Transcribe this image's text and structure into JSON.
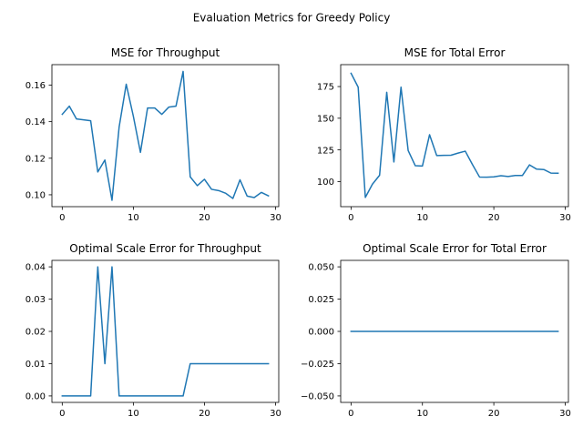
{
  "figure": {
    "title": "Evaluation Metrics for Greedy Policy"
  },
  "chart_data": [
    {
      "type": "line",
      "title": "MSE for Throughput",
      "xlabel": "",
      "ylabel": "",
      "xlim": [
        -1.45,
        30.45
      ],
      "ylim": [
        0.0935,
        0.1712
      ],
      "xticks": [
        0,
        10,
        20,
        30
      ],
      "yticks": [
        0.1,
        0.12,
        0.14,
        0.16
      ],
      "ytick_labels": [
        "0.10",
        "0.12",
        "0.14",
        "0.16"
      ],
      "grid": false,
      "series": [
        {
          "x": [
            0,
            1,
            2,
            3,
            4,
            5,
            6,
            7,
            8,
            9,
            10,
            11,
            12,
            13,
            14,
            15,
            16,
            17,
            18,
            19,
            20,
            21,
            22,
            23,
            24,
            25,
            26,
            27,
            28,
            29
          ],
          "y": [
            0.144,
            0.1485,
            0.1415,
            0.141,
            0.1405,
            0.1125,
            0.119,
            0.097,
            0.137,
            0.1605,
            0.143,
            0.1232,
            0.1475,
            0.1475,
            0.144,
            0.148,
            0.1485,
            0.1675,
            0.1098,
            0.105,
            0.1085,
            0.103,
            0.1023,
            0.1008,
            0.098,
            0.1082,
            0.0993,
            0.0985,
            0.1013,
            0.0994
          ]
        }
      ]
    },
    {
      "type": "line",
      "title": "MSE for Total Error",
      "xlabel": "",
      "ylabel": "",
      "xlim": [
        -1.45,
        30.45
      ],
      "ylim": [
        80.2,
        192.3
      ],
      "xticks": [
        0,
        10,
        20,
        30
      ],
      "yticks": [
        100,
        125,
        150,
        175
      ],
      "ytick_labels": [
        "100",
        "125",
        "150",
        "175"
      ],
      "grid": false,
      "series": [
        {
          "x": [
            0,
            1,
            2,
            3,
            4,
            5,
            6,
            7,
            8,
            9,
            10,
            11,
            12,
            13,
            14,
            15,
            16,
            17,
            18,
            19,
            20,
            21,
            22,
            23,
            24,
            25,
            26,
            27,
            28,
            29
          ],
          "y": [
            185.5,
            174.5,
            87.5,
            98,
            105,
            170.5,
            115.5,
            174.5,
            124.5,
            112.5,
            112.3,
            137,
            120.5,
            120.7,
            120.8,
            122.5,
            124,
            113.5,
            103.6,
            103.5,
            103.7,
            104.6,
            104,
            104.8,
            104.8,
            113.2,
            109.8,
            109.5,
            106.7,
            106.6
          ]
        }
      ]
    },
    {
      "type": "line",
      "title": "Optimal Scale Error for Throughput",
      "xlabel": "",
      "ylabel": "",
      "xlim": [
        -1.45,
        30.45
      ],
      "ylim": [
        -0.002,
        0.042
      ],
      "xticks": [
        0,
        10,
        20,
        30
      ],
      "yticks": [
        0.0,
        0.01,
        0.02,
        0.03,
        0.04
      ],
      "ytick_labels": [
        "0.00",
        "0.01",
        "0.02",
        "0.03",
        "0.04"
      ],
      "grid": false,
      "series": [
        {
          "x": [
            0,
            1,
            2,
            3,
            4,
            5,
            6,
            7,
            8,
            9,
            10,
            11,
            12,
            13,
            14,
            15,
            16,
            17,
            18,
            19,
            20,
            21,
            22,
            23,
            24,
            25,
            26,
            27,
            28,
            29
          ],
          "y": [
            0,
            0,
            0,
            0,
            0,
            0.04,
            0.01,
            0.04,
            0,
            0,
            0,
            0,
            0,
            0,
            0,
            0,
            0,
            0,
            0.01,
            0.01,
            0.01,
            0.01,
            0.01,
            0.01,
            0.01,
            0.01,
            0.01,
            0.01,
            0.01,
            0.01
          ]
        }
      ]
    },
    {
      "type": "line",
      "title": "Optimal Scale Error for Total Error",
      "xlabel": "",
      "ylabel": "",
      "xlim": [
        -1.45,
        30.45
      ],
      "ylim": [
        -0.055,
        0.055
      ],
      "xticks": [
        0,
        10,
        20,
        30
      ],
      "yticks": [
        -0.05,
        -0.025,
        0.0,
        0.025,
        0.05
      ],
      "ytick_labels": [
        "−0.050",
        "−0.025",
        "0.000",
        "0.025",
        "0.050"
      ],
      "grid": false,
      "series": [
        {
          "x": [
            0,
            1,
            2,
            3,
            4,
            5,
            6,
            7,
            8,
            9,
            10,
            11,
            12,
            13,
            14,
            15,
            16,
            17,
            18,
            19,
            20,
            21,
            22,
            23,
            24,
            25,
            26,
            27,
            28,
            29
          ],
          "y": [
            0,
            0,
            0,
            0,
            0,
            0,
            0,
            0,
            0,
            0,
            0,
            0,
            0,
            0,
            0,
            0,
            0,
            0,
            0,
            0,
            0,
            0,
            0,
            0,
            0,
            0,
            0,
            0,
            0,
            0
          ]
        }
      ]
    }
  ]
}
